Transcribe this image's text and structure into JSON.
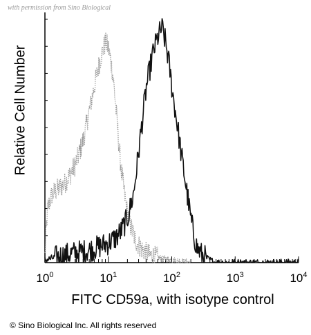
{
  "watermark": "with permission from Sino Biological",
  "copyright": "© Sino Biological Inc. All rights reserved",
  "colors": {
    "isotype": "#9a9a9a",
    "cd59a": "#111111",
    "axis": "#000000"
  },
  "chart_data": {
    "type": "area",
    "xlabel": "FITC CD59a, with isotype control",
    "ylabel": "Relative Cell Number",
    "x_scale": "log",
    "xlim": [
      1,
      10000
    ],
    "ylim": [
      0,
      100
    ],
    "x_ticks": [
      {
        "base": "10",
        "exp": "0",
        "value": 1
      },
      {
        "base": "10",
        "exp": "1",
        "value": 10
      },
      {
        "base": "10",
        "exp": "2",
        "value": 100
      },
      {
        "base": "10",
        "exp": "3",
        "value": 1000
      },
      {
        "base": "10",
        "exp": "4",
        "value": 10000
      }
    ],
    "series": [
      {
        "style": "dotted-gray",
        "points": [
          [
            1.0,
            3
          ],
          [
            1.1,
            22
          ],
          [
            1.3,
            28
          ],
          [
            1.6,
            30
          ],
          [
            2.0,
            32
          ],
          [
            2.5,
            36
          ],
          [
            3.0,
            40
          ],
          [
            3.5,
            45
          ],
          [
            4.0,
            50
          ],
          [
            4.5,
            56
          ],
          [
            5.0,
            62
          ],
          [
            6.0,
            72
          ],
          [
            7.0,
            80
          ],
          [
            8.0,
            86
          ],
          [
            9.0,
            90
          ],
          [
            10.0,
            88
          ],
          [
            11.0,
            82
          ],
          [
            12.0,
            75
          ],
          [
            13.0,
            65
          ],
          [
            14.0,
            55
          ],
          [
            15.0,
            45
          ],
          [
            16.0,
            38
          ],
          [
            18.0,
            28
          ],
          [
            20.0,
            20
          ],
          [
            23.0,
            14
          ],
          [
            26.0,
            10
          ],
          [
            30.0,
            7
          ],
          [
            36.0,
            5
          ],
          [
            45.0,
            3
          ],
          [
            60.0,
            2
          ],
          [
            100.0,
            1
          ],
          [
            200.0,
            0
          ]
        ]
      },
      {
        "style": "dense-black",
        "points": [
          [
            1.0,
            1
          ],
          [
            2.0,
            3
          ],
          [
            3.0,
            4
          ],
          [
            5.0,
            5
          ],
          [
            8.0,
            7
          ],
          [
            10.0,
            8
          ],
          [
            13.0,
            10
          ],
          [
            16.0,
            13
          ],
          [
            20.0,
            18
          ],
          [
            25.0,
            28
          ],
          [
            30.0,
            45
          ],
          [
            35.0,
            60
          ],
          [
            40.0,
            72
          ],
          [
            50.0,
            85
          ],
          [
            60.0,
            92
          ],
          [
            70.0,
            96
          ],
          [
            80.0,
            90
          ],
          [
            90.0,
            82
          ],
          [
            100.0,
            72
          ],
          [
            120.0,
            58
          ],
          [
            140.0,
            45
          ],
          [
            160.0,
            35
          ],
          [
            180.0,
            26
          ],
          [
            200.0,
            18
          ],
          [
            220.0,
            12
          ],
          [
            250.0,
            6
          ],
          [
            300.0,
            3
          ],
          [
            400.0,
            1
          ],
          [
            500.0,
            0
          ],
          [
            10000.0,
            0
          ]
        ]
      }
    ]
  }
}
